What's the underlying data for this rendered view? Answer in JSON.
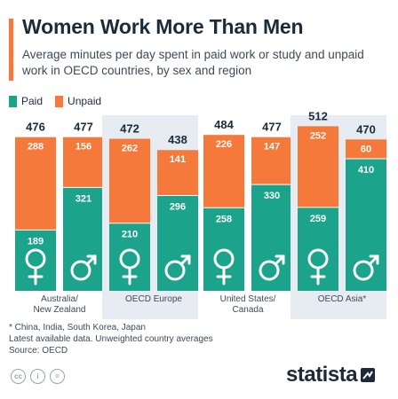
{
  "title": "Women Work More Than Men",
  "subtitle": "Average minutes per day spent in paid work or study and unpaid work in OECD countries, by sex and region",
  "legend": {
    "paid": "Paid",
    "unpaid": "Unpaid"
  },
  "colors": {
    "paid": "#1ba38b",
    "unpaid": "#f4793a",
    "shade": "#e6ecf2",
    "text": "#1c2b3a"
  },
  "chart_data": {
    "type": "bar",
    "stacked": true,
    "regions": [
      {
        "label": "Australia/\nNew Zealand",
        "shaded": false,
        "women": {
          "paid": 189,
          "unpaid": 288,
          "total": 476
        },
        "men": {
          "paid": 321,
          "unpaid": 156,
          "total": 477
        }
      },
      {
        "label": "OECD Europe",
        "shaded": true,
        "women": {
          "paid": 210,
          "unpaid": 262,
          "total": 472
        },
        "men": {
          "paid": 296,
          "unpaid": 141,
          "total": 438
        }
      },
      {
        "label": "United States/\nCanada",
        "shaded": false,
        "women": {
          "paid": 258,
          "unpaid": 226,
          "total": 484
        },
        "men": {
          "paid": 330,
          "unpaid": 147,
          "total": 477
        }
      },
      {
        "label": "OECD Asia*",
        "shaded": true,
        "women": {
          "paid": 259,
          "unpaid": 252,
          "total": 512
        },
        "men": {
          "paid": 410,
          "unpaid": 60,
          "total": 470
        }
      }
    ],
    "ylim": [
      0,
      512
    ],
    "grid": false
  },
  "notes": {
    "footnote": "* China, India, South Korea, Japan",
    "note": "Latest available data. Unweighted country averages",
    "source": "Source: OECD"
  },
  "footer": {
    "logo": "statista",
    "cc_icons": [
      "cc",
      "i",
      "="
    ]
  }
}
